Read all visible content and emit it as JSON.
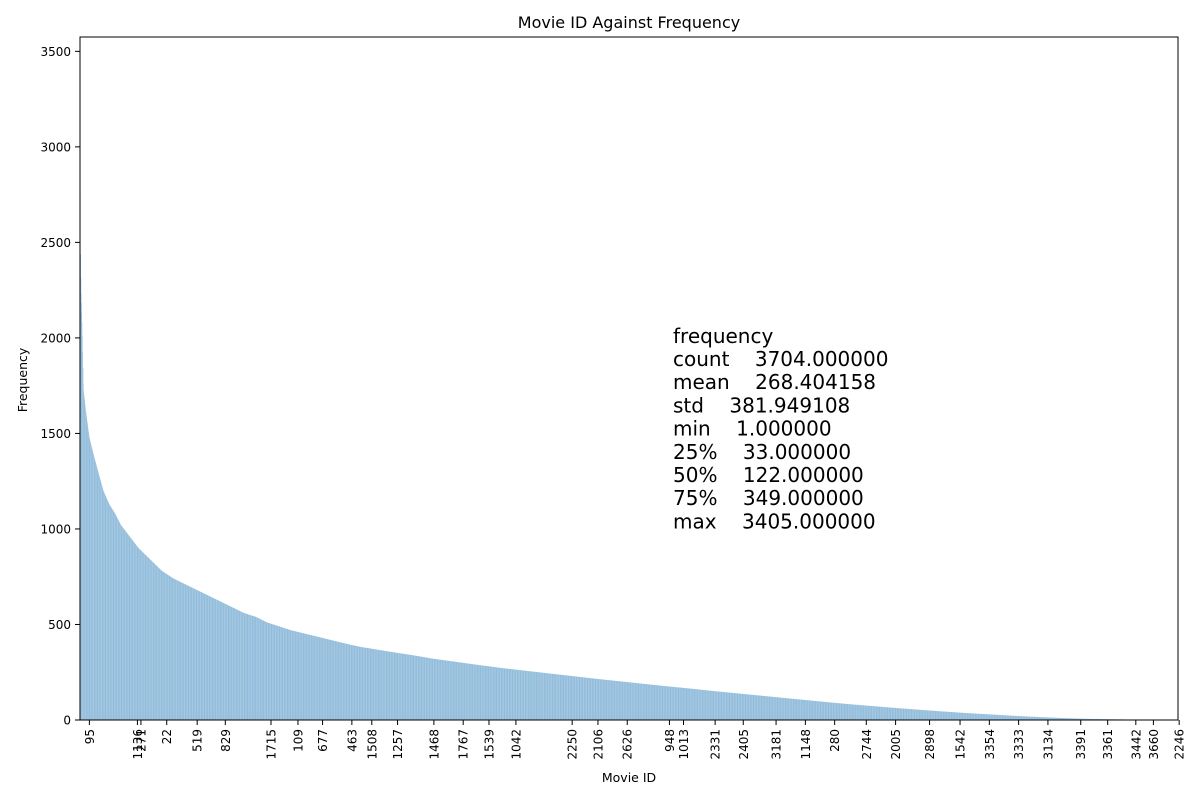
{
  "chart_data": {
    "type": "bar",
    "title": "Movie ID Against Frequency",
    "xlabel": "Movie ID",
    "ylabel": "Frequency",
    "ylim": [
      0,
      3575
    ],
    "y_ticks": [
      0,
      500,
      1000,
      1500,
      2000,
      2500,
      3000,
      3500
    ],
    "bar_color": "#1f77b4",
    "sorted": "descending",
    "n_bars": 3704,
    "x_tick_labels": [
      "95",
      "1136",
      "271",
      "22",
      "519",
      "829",
      "1715",
      "109",
      "677",
      "463",
      "1508",
      "1257",
      "1468",
      "1767",
      "1539",
      "1042",
      "2250",
      "2106",
      "2626",
      "948",
      "1013",
      "2331",
      "2405",
      "3181",
      "1148",
      "280",
      "2744",
      "2005",
      "2898",
      "1542",
      "3354",
      "3333",
      "3134",
      "3391",
      "3361",
      "3442",
      "3660",
      "2246"
    ],
    "x_tick_ranks": [
      80,
      490,
      520,
      740,
      1000,
      1240,
      1630,
      1860,
      2070,
      2320,
      2490,
      2710,
      3020,
      3270,
      3490,
      3720,
      4200,
      4420,
      4670,
      5030,
      5150,
      5420,
      5660,
      5940,
      6190,
      6440,
      6710,
      6960,
      7250,
      7510,
      7760,
      8010,
      8260,
      8540,
      8770,
      9010,
      9160,
      9380
    ],
    "x_tick_scale": 9370,
    "curve_points": [
      [
        1,
        3405
      ],
      [
        5,
        2500
      ],
      [
        10,
        2260
      ],
      [
        20,
        2060
      ],
      [
        30,
        1730
      ],
      [
        50,
        1620
      ],
      [
        80,
        1480
      ],
      [
        120,
        1380
      ],
      [
        160,
        1290
      ],
      [
        200,
        1200
      ],
      [
        250,
        1130
      ],
      [
        300,
        1080
      ],
      [
        350,
        1020
      ],
      [
        400,
        980
      ],
      [
        500,
        900
      ],
      [
        600,
        840
      ],
      [
        700,
        780
      ],
      [
        800,
        740
      ],
      [
        900,
        710
      ],
      [
        1000,
        680
      ],
      [
        1100,
        650
      ],
      [
        1200,
        620
      ],
      [
        1300,
        590
      ],
      [
        1400,
        560
      ],
      [
        1500,
        540
      ],
      [
        1600,
        510
      ],
      [
        1700,
        490
      ],
      [
        1800,
        470
      ],
      [
        1900,
        455
      ],
      [
        2000,
        440
      ],
      [
        2100,
        425
      ],
      [
        2200,
        410
      ],
      [
        2300,
        395
      ],
      [
        2400,
        382
      ],
      [
        2500,
        372
      ],
      [
        2600,
        362
      ],
      [
        2700,
        352
      ],
      [
        2800,
        343
      ],
      [
        2900,
        333
      ],
      [
        3000,
        322
      ],
      [
        3200,
        305
      ],
      [
        3400,
        288
      ],
      [
        3600,
        272
      ],
      [
        3800,
        258
      ],
      [
        4000,
        244
      ],
      [
        4200,
        230
      ],
      [
        4400,
        216
      ],
      [
        4600,
        203
      ],
      [
        4800,
        190
      ],
      [
        5000,
        177
      ],
      [
        5200,
        165
      ],
      [
        5400,
        152
      ],
      [
        5600,
        140
      ],
      [
        5800,
        128
      ],
      [
        6000,
        116
      ],
      [
        6200,
        104
      ],
      [
        6400,
        92
      ],
      [
        6600,
        81
      ],
      [
        6800,
        71
      ],
      [
        7000,
        61
      ],
      [
        7200,
        52
      ],
      [
        7400,
        43
      ],
      [
        7600,
        35
      ],
      [
        7800,
        28
      ],
      [
        8000,
        21
      ],
      [
        8200,
        15
      ],
      [
        8400,
        10
      ],
      [
        8600,
        6
      ],
      [
        8800,
        4
      ],
      [
        9000,
        2
      ],
      [
        9200,
        1
      ],
      [
        9370,
        1
      ]
    ],
    "stats_text": {
      "header": "frequency",
      "lines": [
        "count    3704.000000",
        "mean    268.404158",
        "std    381.949108",
        "min    1.000000",
        "25%    33.000000",
        "50%    122.000000",
        "75%    349.000000",
        "max    3405.000000"
      ]
    }
  }
}
